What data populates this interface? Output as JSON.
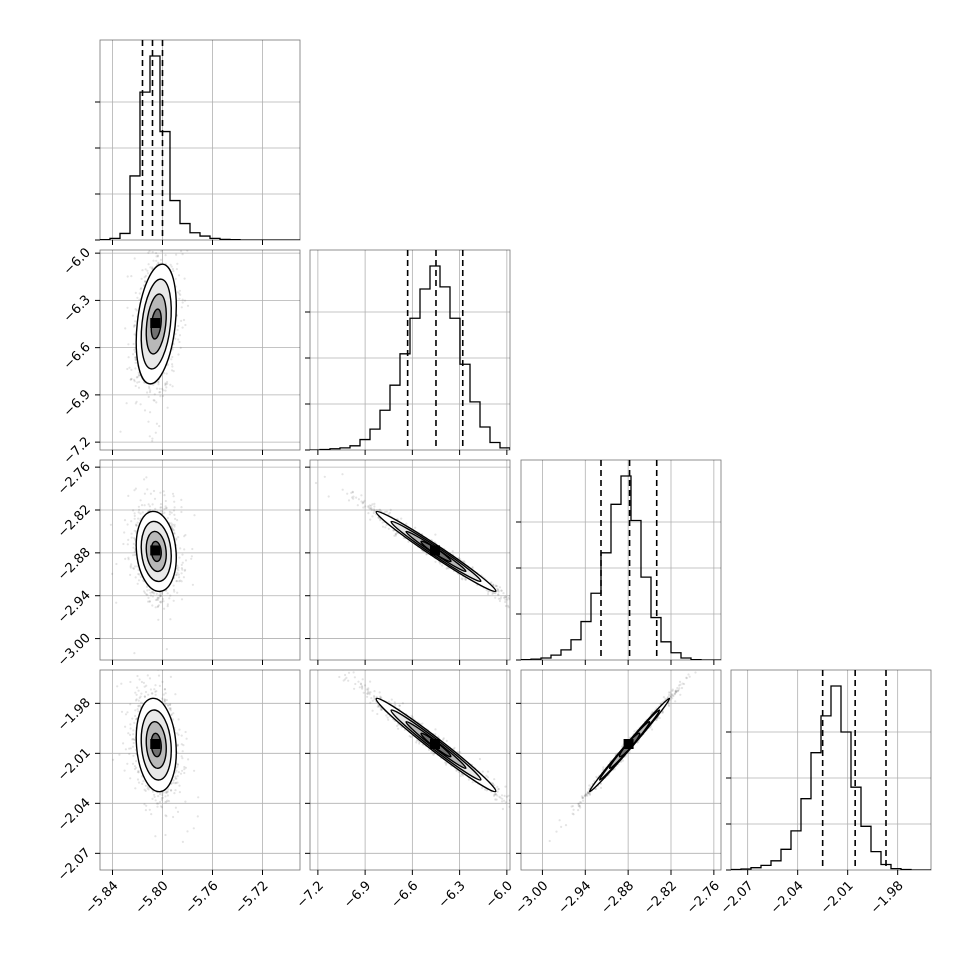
{
  "chart_data": {
    "type": "corner",
    "parameters": 4,
    "ranges": [
      [
        -5.85,
        -5.69
      ],
      [
        -7.25,
        -5.98
      ],
      [
        -3.03,
        -2.75
      ],
      [
        -2.08,
        -1.96
      ]
    ],
    "x_tick_values": [
      [
        -5.84,
        -5.8,
        -5.76,
        -5.72
      ],
      [
        -7.2,
        -6.9,
        -6.6,
        -6.3,
        -6.0
      ],
      [
        -3.0,
        -2.94,
        -2.88,
        -2.82,
        -2.76
      ],
      [
        -2.07,
        -2.04,
        -2.01,
        -1.98
      ]
    ],
    "x_tick_labels": [
      [
        "−5.84",
        "−5.80",
        "−5.76",
        "−5.72"
      ],
      [
        "−7.2",
        "−6.9",
        "−6.6",
        "−6.3",
        "−6.0"
      ],
      [
        "−3.00",
        "−2.94",
        "−2.88",
        "−2.82",
        "−2.76"
      ],
      [
        "−2.07",
        "−2.04",
        "−2.01",
        "−1.98"
      ]
    ],
    "y_tick_labels": [
      null,
      [
        "−6.0",
        "−6.3",
        "−6.6",
        "−6.9",
        "−7.2"
      ],
      [
        "−2.76",
        "−2.82",
        "−2.88",
        "−2.94",
        "−3.00"
      ],
      [
        "−1.98",
        "−2.01",
        "−2.04",
        "−2.07"
      ]
    ],
    "histograms": [
      {
        "counts": [
          1,
          5,
          20,
          195,
          450,
          560,
          330,
          120,
          50,
          22,
          12,
          5,
          2,
          1,
          0,
          0,
          0,
          0,
          0,
          0
        ],
        "quantiles": [
          -5.816,
          -5.808,
          -5.8
        ]
      },
      {
        "counts": [
          0,
          1,
          3,
          5,
          10,
          25,
          50,
          95,
          155,
          230,
          315,
          385,
          440,
          390,
          315,
          205,
          115,
          55,
          18,
          5
        ],
        "quantiles": [
          -6.63,
          -6.45,
          -6.28
        ]
      },
      {
        "counts": [
          1,
          2,
          5,
          12,
          25,
          50,
          95,
          165,
          265,
          385,
          455,
          345,
          205,
          105,
          45,
          18,
          5,
          1,
          0,
          0
        ],
        "quantiles": [
          -2.918,
          -2.878,
          -2.84
        ]
      },
      {
        "counts": [
          1,
          2,
          5,
          10,
          20,
          45,
          85,
          155,
          255,
          335,
          400,
          300,
          180,
          95,
          40,
          12,
          3,
          1,
          0,
          0
        ],
        "quantiles": [
          -2.025,
          -2.0055,
          -1.987
        ]
      }
    ],
    "pairs": [
      {
        "row": 1,
        "col": 0,
        "mean": [
          -5.805,
          -6.45
        ],
        "sd": [
          0.008,
          0.19
        ],
        "rho": 0.3
      },
      {
        "row": 2,
        "col": 0,
        "mean": [
          -5.805,
          -2.878
        ],
        "sd": [
          0.008,
          0.028
        ],
        "rho": -0.15
      },
      {
        "row": 2,
        "col": 1,
        "mean": [
          -6.45,
          -2.878
        ],
        "sd": [
          0.19,
          0.028
        ],
        "rho": -0.985
      },
      {
        "row": 3,
        "col": 0,
        "mean": [
          -5.805,
          -2.005
        ],
        "sd": [
          0.008,
          0.014
        ],
        "rho": -0.15
      },
      {
        "row": 3,
        "col": 1,
        "mean": [
          -6.45,
          -2.005
        ],
        "sd": [
          0.19,
          0.014
        ],
        "rho": -0.985
      },
      {
        "row": 3,
        "col": 2,
        "mean": [
          -2.878,
          -2.005
        ],
        "sd": [
          0.028,
          0.014
        ],
        "rho": 0.995
      }
    ],
    "contour_levels_sigma": [
      0.5,
      1.0,
      1.5,
      2.0
    ],
    "grid": true,
    "colors": {
      "points": "#555555",
      "line": "#000000",
      "grid": "#b0b0b0",
      "hist": "#000000"
    }
  }
}
